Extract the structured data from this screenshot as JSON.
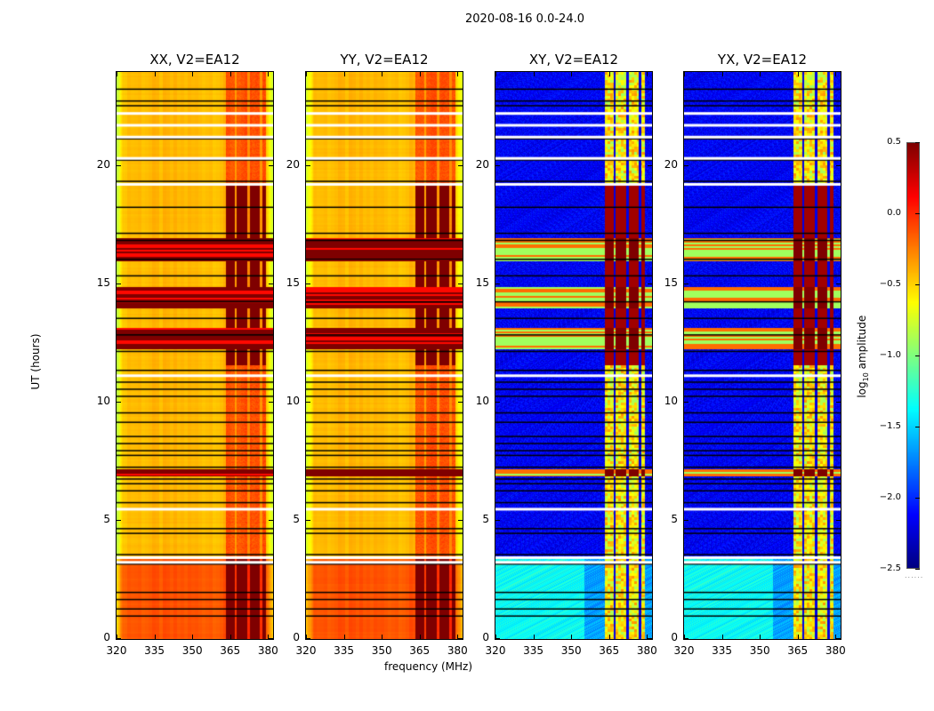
{
  "suptitle": "2020-08-16 0.0-24.0",
  "chart_data": {
    "type": "heatmap",
    "title": "2020-08-16 0.0-24.0",
    "xlabel": "frequency (MHz)",
    "ylabel": "UT (hours)",
    "xlim": [
      320,
      382
    ],
    "ylim": [
      0,
      24
    ],
    "xticks": [
      320,
      335,
      350,
      365,
      380
    ],
    "yticks": [
      0,
      5,
      10,
      15,
      20
    ],
    "colormap": "jet",
    "colorbar": {
      "label_prefix": "log",
      "label_sub": "10",
      "label_suffix": " amplitude",
      "range": [
        -2.5,
        0.5
      ],
      "ticks": [
        "0.5",
        "0.0",
        "−0.5",
        "−1.0",
        "−1.5",
        "−2.0",
        "−2.5"
      ],
      "tick_values": [
        0.5,
        0.0,
        -0.5,
        -1.0,
        -1.5,
        -2.0,
        -2.5
      ]
    },
    "panels": [
      {
        "title": "XX, V2=EA12",
        "kind": "parallel"
      },
      {
        "title": "YY, V2=EA12",
        "kind": "parallel"
      },
      {
        "title": "XY, V2=EA12",
        "kind": "cross"
      },
      {
        "title": "YX, V2=EA12",
        "kind": "cross"
      }
    ],
    "rfi_band_mhz": [
      363,
      379
    ],
    "rfi_subband_gaps_mhz": [
      367,
      372,
      377
    ],
    "flagged_white_hours": [
      22.3,
      21.8,
      21.3,
      20.4,
      19.3,
      11.2,
      5.55,
      3.5,
      3.3
    ],
    "black_gap_hours": [
      23.3,
      22.8,
      22.6,
      21.2,
      20.3,
      19.4,
      18.3,
      17.2,
      16.9,
      16.1,
      15.4,
      14.3,
      13.6,
      12.9,
      12.2,
      11.4,
      10.9,
      10.6,
      10.3,
      9.6,
      9.2,
      8.6,
      8.3,
      8.0,
      7.8,
      7.3,
      6.8,
      6.6,
      6.3,
      5.8,
      4.7,
      4.5,
      3.6,
      3.2,
      2.0,
      1.7,
      1.3,
      1.0
    ],
    "strong_rfi_hours": [
      [
        16.0,
        17.0
      ],
      [
        14.0,
        14.9
      ],
      [
        12.3,
        13.2
      ],
      [
        6.9,
        7.2
      ]
    ],
    "elevated_band_hours": [
      [
        0.0,
        3.4
      ],
      [
        11.6,
        19.3
      ]
    ],
    "parallel_base_log_amp": -0.45,
    "cross_base_log_amp": -2.3,
    "cross_early_hours_log_amp": -1.5
  }
}
